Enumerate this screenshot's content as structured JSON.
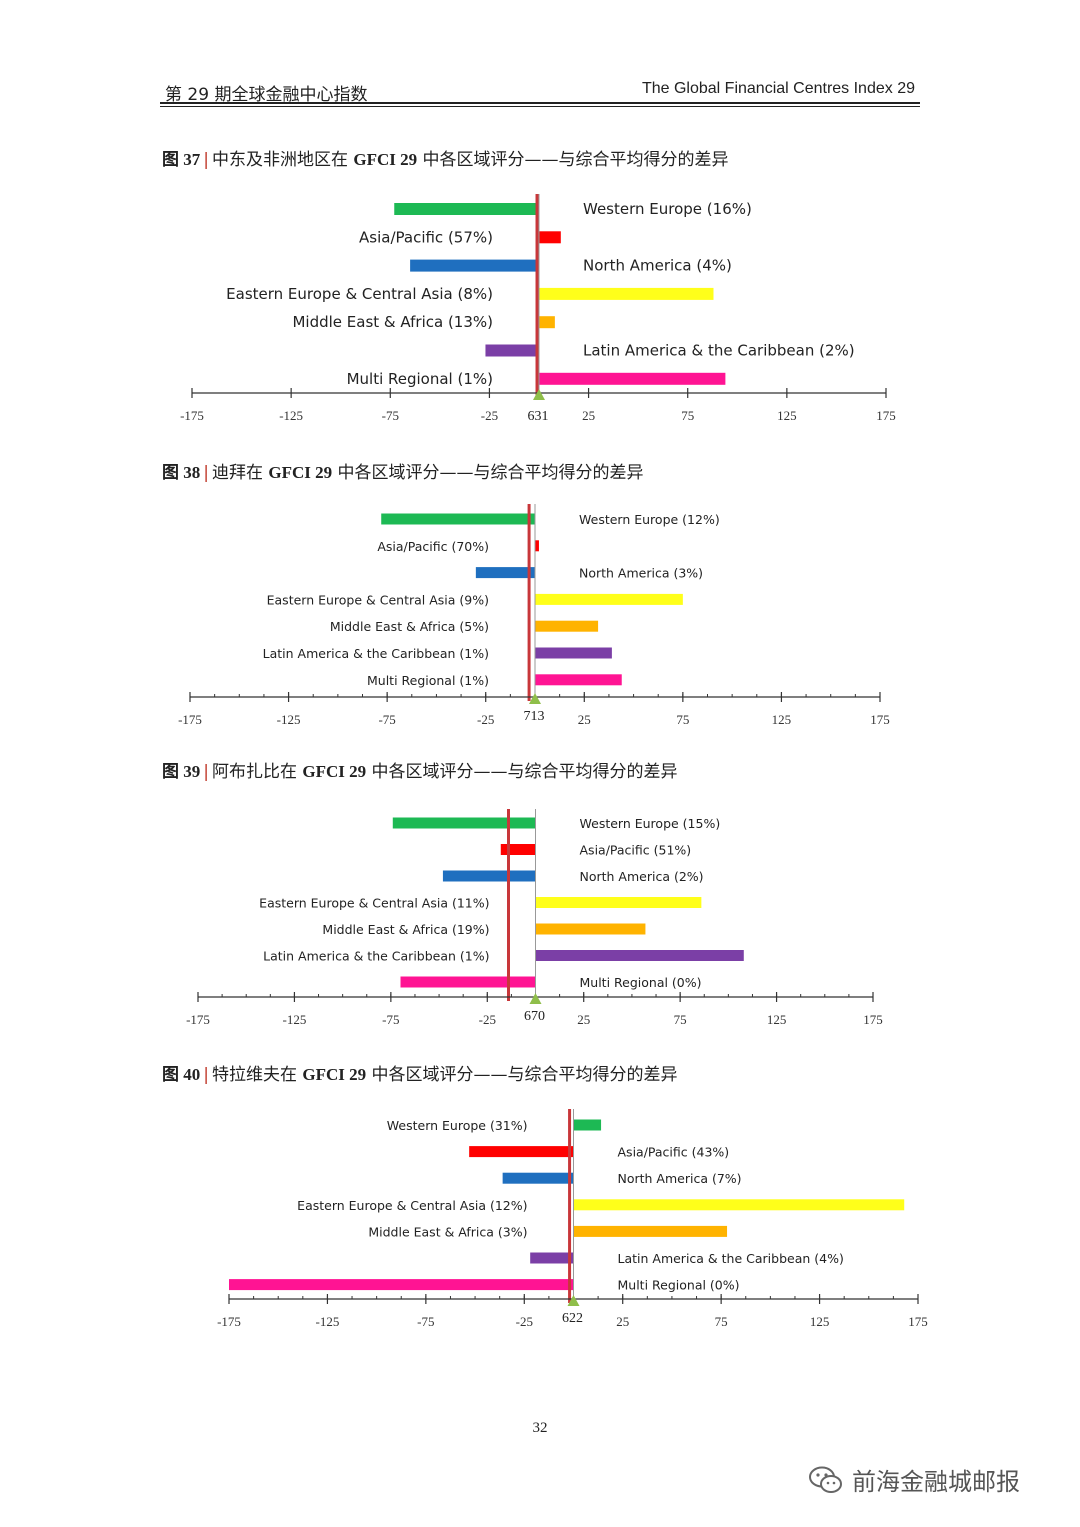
{
  "header": {
    "left": "第 29 期全球金融中心指数",
    "right": "The Global Financial Centres Index 29"
  },
  "colors": {
    "Western Europe": "#1db954",
    "Asia/Pacific": "#ff0000",
    "North America": "#1f6fbf",
    "Eastern Europe & Central Asia": "#ffff1a",
    "Middle East & Africa": "#ffb300",
    "Latin America & the Caribbean": "#7b3fa6",
    "Multi Regional": "#ff1493",
    "average_line": "#c8373a",
    "marker": "#8fbe4a"
  },
  "chart_data": [
    {
      "type": "bar",
      "fig_num": "图 37",
      "title_pre": "中东及非洲地区在",
      "title_gfci": "GFCI 29",
      "title_post": "中各区域评分——与综合平均得分的差异",
      "center_label": "631",
      "ticks": [
        "-175",
        "-125",
        "-75",
        "-25",
        "25",
        "75",
        "125",
        "175"
      ],
      "xlim": [
        -175,
        175
      ],
      "avg_offset": -1,
      "labels": [
        "Western Europe (16%)",
        "Asia/Pacific (57%)",
        "North America (4%)",
        "Eastern Europe & Central Asia (8%)",
        "Middle East & Africa (13%)",
        "Latin America & the Caribbean (2%)",
        "Multi Regional (1%)"
      ],
      "values": [
        -73,
        11,
        -65,
        88,
        8,
        -27,
        94
      ]
    },
    {
      "type": "bar",
      "fig_num": "图 38",
      "title_pre": "迪拜在",
      "title_gfci": "GFCI 29",
      "title_post": "中各区域评分——与综合平均得分的差异",
      "center_label": "713",
      "ticks": [
        "-175",
        "-125",
        "-75",
        "-25",
        "25",
        "75",
        "125",
        "175"
      ],
      "xlim": [
        -175,
        175
      ],
      "avg_offset": -3,
      "labels": [
        "Western Europe (12%)",
        "Asia/Pacific (70%)",
        "North America (3%)",
        "Eastern Europe & Central Asia (9%)",
        "Middle East & Africa (5%)",
        "Latin America & the Caribbean (1%)",
        "Multi Regional (1%)"
      ],
      "values": [
        -78,
        2,
        -30,
        75,
        32,
        39,
        44
      ]
    },
    {
      "type": "bar",
      "fig_num": "图 39",
      "title_pre": "阿布扎比在",
      "title_gfci": "GFCI 29",
      "title_post": "中各区域评分——与综合平均得分的差异",
      "center_label": "670",
      "ticks": [
        "-175",
        "-125",
        "-75",
        "-25",
        "25",
        "75",
        "125",
        "175"
      ],
      "xlim": [
        -175,
        175
      ],
      "avg_offset": -14,
      "labels": [
        "Western Europe (15%)",
        "Asia/Pacific (51%)",
        "North America (2%)",
        "Eastern Europe & Central Asia (11%)",
        "Middle East & Africa (19%)",
        "Latin America & the Caribbean (1%)",
        "Multi Regional (0%)"
      ],
      "values": [
        -74,
        -18,
        -48,
        86,
        57,
        108,
        -70
      ]
    },
    {
      "type": "bar",
      "fig_num": "图 40",
      "title_pre": "特拉维夫在",
      "title_gfci": "GFCI 29",
      "title_post": "中各区域评分——与综合平均得分的差异",
      "center_label": "622",
      "ticks": [
        "-175",
        "-125",
        "-75",
        "-25",
        "25",
        "75",
        "125",
        "175"
      ],
      "xlim": [
        -175,
        175
      ],
      "avg_offset": -2,
      "labels": [
        "Western Europe (31%)",
        "Asia/Pacific (43%)",
        "North America (7%)",
        "Eastern Europe & Central Asia (12%)",
        "Middle East & Africa (3%)",
        "Latin America & the Caribbean (4%)",
        "Multi Regional (0%)"
      ],
      "values": [
        14,
        -53,
        -36,
        168,
        78,
        -22,
        -175
      ]
    }
  ],
  "footer": {
    "page_number": "32",
    "watermark": "前海金融城邮报",
    "watermark_icon": "wechat-icon"
  }
}
